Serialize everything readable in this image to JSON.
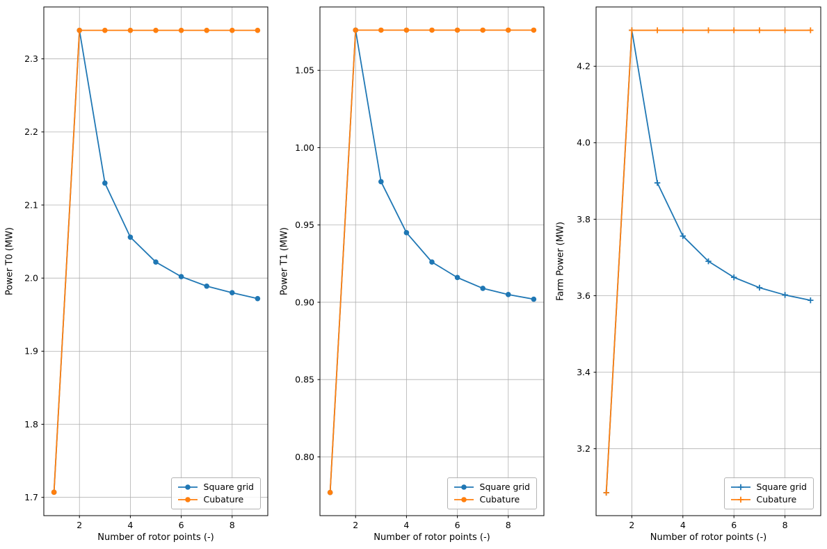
{
  "figure": {
    "background": "#ffffff",
    "grid_color": "#b0b0b0",
    "axis_color": "#000000",
    "legend_border_color": "#b3b3b3"
  },
  "chart_data": [
    {
      "type": "line",
      "xlabel": "Number of rotor points (-)",
      "ylabel": "Power T0 (MW)",
      "x": [
        1,
        2,
        3,
        4,
        5,
        6,
        7,
        8,
        9
      ],
      "xlim": [
        0.6,
        9.4
      ],
      "ylim": [
        1.675,
        2.371
      ],
      "xticks": {
        "values": [
          2,
          4,
          6,
          8
        ],
        "labels": [
          "2",
          "4",
          "6",
          "8"
        ]
      },
      "yticks": {
        "values": [
          1.7,
          1.8,
          1.9,
          2.0,
          2.1,
          2.2,
          2.3
        ],
        "labels": [
          "1.7",
          "1.8",
          "1.9",
          "2.0",
          "2.1",
          "2.2",
          "2.3"
        ]
      },
      "grid": true,
      "marker": "circle",
      "legend": {
        "position": "lower right"
      },
      "series": [
        {
          "name": "Square grid",
          "color": "#1f77b4",
          "values": [
            1.707,
            2.339,
            2.13,
            2.056,
            2.022,
            2.002,
            1.989,
            1.98,
            1.972
          ]
        },
        {
          "name": "Cubature",
          "color": "#ff7f0e",
          "values": [
            1.707,
            2.339,
            2.339,
            2.339,
            2.339,
            2.339,
            2.339,
            2.339,
            2.339
          ]
        }
      ]
    },
    {
      "type": "line",
      "xlabel": "Number of rotor points (-)",
      "ylabel": "Power T1 (MW)",
      "x": [
        1,
        2,
        3,
        4,
        5,
        6,
        7,
        8,
        9
      ],
      "xlim": [
        0.6,
        9.4
      ],
      "ylim": [
        0.762,
        1.091
      ],
      "xticks": {
        "values": [
          2,
          4,
          6,
          8
        ],
        "labels": [
          "2",
          "4",
          "6",
          "8"
        ]
      },
      "yticks": {
        "values": [
          0.8,
          0.85,
          0.9,
          0.95,
          1.0,
          1.05
        ],
        "labels": [
          "0.80",
          "0.85",
          "0.90",
          "0.95",
          "1.00",
          "1.05"
        ]
      },
      "grid": true,
      "marker": "circle",
      "legend": {
        "position": "lower right"
      },
      "series": [
        {
          "name": "Square grid",
          "color": "#1f77b4",
          "values": [
            0.777,
            1.076,
            0.978,
            0.945,
            0.926,
            0.916,
            0.909,
            0.905,
            0.902
          ]
        },
        {
          "name": "Cubature",
          "color": "#ff7f0e",
          "values": [
            0.777,
            1.076,
            1.076,
            1.076,
            1.076,
            1.076,
            1.076,
            1.076,
            1.076
          ]
        }
      ]
    },
    {
      "type": "line",
      "xlabel": "Number of rotor points (-)",
      "ylabel": "Farm Power (MW)",
      "x": [
        1,
        2,
        3,
        4,
        5,
        6,
        7,
        8,
        9
      ],
      "xlim": [
        0.6,
        9.4
      ],
      "ylim": [
        3.025,
        4.355
      ],
      "xticks": {
        "values": [
          2,
          4,
          6,
          8
        ],
        "labels": [
          "2",
          "4",
          "6",
          "8"
        ]
      },
      "yticks": {
        "values": [
          3.2,
          3.4,
          3.6,
          3.8,
          4.0,
          4.2
        ],
        "labels": [
          "3.2",
          "3.4",
          "3.6",
          "3.8",
          "4.0",
          "4.2"
        ]
      },
      "grid": true,
      "marker": "plus",
      "legend": {
        "position": "lower right"
      },
      "series": [
        {
          "name": "Square grid",
          "color": "#1f77b4",
          "values": [
            3.085,
            4.294,
            3.895,
            3.756,
            3.69,
            3.648,
            3.621,
            3.602,
            3.588
          ]
        },
        {
          "name": "Cubature",
          "color": "#ff7f0e",
          "values": [
            3.085,
            4.294,
            4.294,
            4.294,
            4.294,
            4.294,
            4.294,
            4.294,
            4.294
          ]
        }
      ]
    }
  ]
}
